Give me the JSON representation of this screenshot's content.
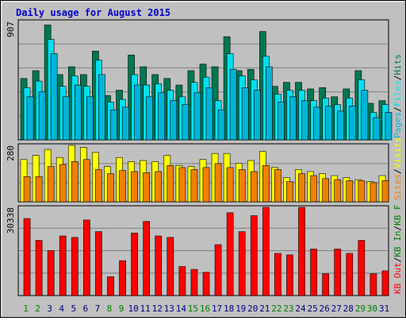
{
  "colors": {
    "background": "#c0c0c0",
    "plot_background": "#c0c0c0",
    "title": "#0000cc",
    "hits": "#007850",
    "files": "#00e0f0",
    "pages": "#00b4d8",
    "visits": "#ffff00",
    "sites": "#f08000",
    "kbytes": "#ff0000",
    "axis_text": "#000000",
    "weekend_day": "#008000",
    "weekday_day": "#000080"
  },
  "chart_data": [
    {
      "type": "bar",
      "panel": "top",
      "title": "Daily usage for August 2015",
      "ymax_label": "907",
      "ylim": [
        0,
        907
      ],
      "right_labels": [
        "Pages",
        "Files",
        "Hits"
      ],
      "categories": [
        "1",
        "2",
        "3",
        "4",
        "5",
        "6",
        "7",
        "8",
        "9",
        "10",
        "11",
        "12",
        "13",
        "14",
        "15",
        "16",
        "17",
        "18",
        "19",
        "20",
        "21",
        "22",
        "23",
        "24",
        "25",
        "26",
        "27",
        "28",
        "29",
        "30",
        "31"
      ],
      "weekend_days": [
        "1",
        "2",
        "8",
        "9",
        "15",
        "16",
        "22",
        "23",
        "29",
        "30"
      ],
      "series": [
        {
          "name": "Hits",
          "values": [
            470,
            530,
            880,
            500,
            560,
            500,
            680,
            340,
            380,
            650,
            560,
            500,
            470,
            420,
            530,
            580,
            560,
            790,
            530,
            540,
            830,
            410,
            440,
            440,
            390,
            400,
            330,
            390,
            530,
            280,
            300
          ]
        },
        {
          "name": "Files",
          "values": [
            400,
            450,
            770,
            410,
            490,
            410,
            610,
            290,
            310,
            500,
            420,
            430,
            380,
            330,
            440,
            480,
            300,
            660,
            490,
            460,
            640,
            350,
            380,
            380,
            300,
            320,
            270,
            320,
            460,
            210,
            270
          ]
        },
        {
          "name": "Pages",
          "values": [
            330,
            370,
            660,
            330,
            420,
            330,
            500,
            230,
            250,
            420,
            330,
            360,
            300,
            270,
            360,
            400,
            230,
            540,
            400,
            380,
            560,
            290,
            330,
            300,
            250,
            260,
            220,
            260,
            380,
            170,
            210
          ]
        }
      ]
    },
    {
      "type": "bar",
      "panel": "middle",
      "ymax_label": "280",
      "ylim": [
        0,
        280
      ],
      "right_labels": [
        "Sites",
        "Visits"
      ],
      "categories": [
        "1",
        "2",
        "3",
        "4",
        "5",
        "6",
        "7",
        "8",
        "9",
        "10",
        "11",
        "12",
        "13",
        "14",
        "15",
        "16",
        "17",
        "18",
        "19",
        "20",
        "21",
        "22",
        "23",
        "24",
        "25",
        "26",
        "27",
        "28",
        "29",
        "30",
        "31"
      ],
      "series": [
        {
          "name": "Visits",
          "values": [
            210,
            230,
            260,
            220,
            280,
            270,
            245,
            175,
            220,
            200,
            205,
            200,
            230,
            180,
            175,
            210,
            240,
            240,
            190,
            205,
            250,
            170,
            120,
            160,
            150,
            140,
            130,
            120,
            110,
            100,
            130
          ]
        },
        {
          "name": "Sites",
          "values": [
            125,
            125,
            175,
            185,
            200,
            210,
            160,
            140,
            155,
            150,
            145,
            150,
            180,
            170,
            160,
            170,
            190,
            170,
            160,
            150,
            180,
            160,
            100,
            140,
            130,
            115,
            110,
            105,
            105,
            95,
            105
          ]
        }
      ]
    },
    {
      "type": "bar",
      "panel": "bottom",
      "ymax_label": "30338",
      "ylim": [
        0,
        30338
      ],
      "right_labels": [
        "KB F",
        "KB In",
        "KB Out"
      ],
      "categories": [
        "1",
        "2",
        "3",
        "4",
        "5",
        "6",
        "7",
        "8",
        "9",
        "10",
        "11",
        "12",
        "13",
        "14",
        "15",
        "16",
        "17",
        "18",
        "19",
        "20",
        "21",
        "22",
        "23",
        "24",
        "25",
        "26",
        "27",
        "28",
        "29",
        "30",
        "31"
      ],
      "series": [
        {
          "name": "KB F",
          "values": [
            26500,
            19000,
            15500,
            20500,
            20000,
            26000,
            22000,
            6500,
            12000,
            21500,
            25500,
            20500,
            20000,
            10000,
            9000,
            8000,
            17500,
            28500,
            22000,
            27500,
            30338,
            14500,
            14000,
            30338,
            16000,
            7500,
            16000,
            14500,
            19000,
            7500,
            8500
          ]
        }
      ]
    }
  ]
}
